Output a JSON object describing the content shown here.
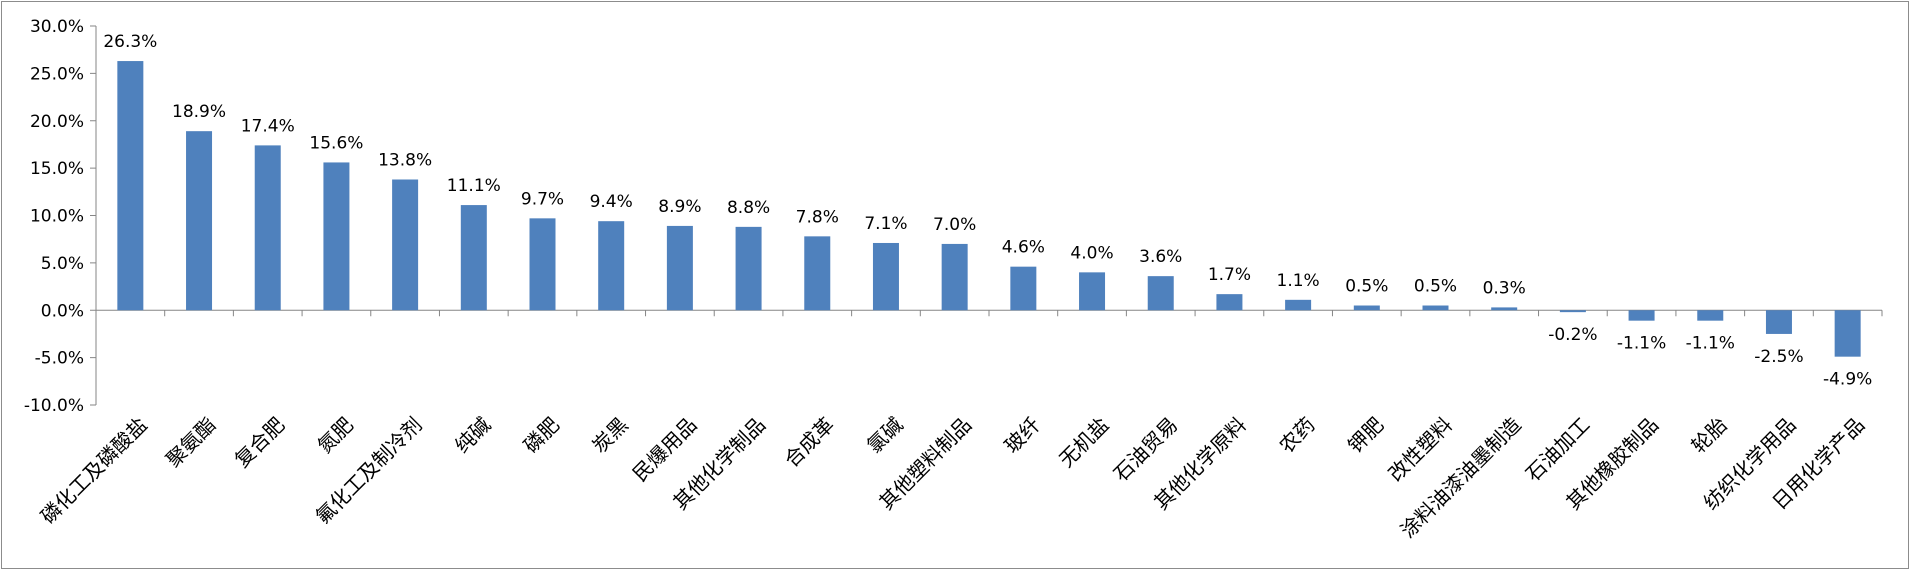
{
  "chart_data": {
    "type": "bar",
    "title": "",
    "xlabel": "",
    "ylabel": "",
    "ylim": [
      -10.0,
      30.0
    ],
    "yticks": [
      "30.0%",
      "25.0%",
      "20.0%",
      "15.0%",
      "10.0%",
      "5.0%",
      "0.0%",
      "-5.0%",
      "-10.0%"
    ],
    "ytick_values": [
      30,
      25,
      20,
      15,
      10,
      5,
      0,
      -5,
      -10
    ],
    "grid": false,
    "legend": "none",
    "bar_color": "#4f81bd",
    "categories": [
      "磷化工及磷酸盐",
      "聚氨酯",
      "复合肥",
      "氮肥",
      "氟化工及制冷剂",
      "纯碱",
      "磷肥",
      "炭黑",
      "民爆用品",
      "其他化学制品",
      "合成革",
      "氯碱",
      "其他塑料制品",
      "玻纤",
      "无机盐",
      "石油贸易",
      "其他化学原料",
      "农药",
      "钾肥",
      "改性塑料",
      "涂料油漆油墨制造",
      "石油加工",
      "其他橡胶制品",
      "轮胎",
      "纺织化学用品",
      "日用化学产品"
    ],
    "values": [
      26.3,
      18.9,
      17.4,
      15.6,
      13.8,
      11.1,
      9.7,
      9.4,
      8.9,
      8.8,
      7.8,
      7.1,
      7.0,
      4.6,
      4.0,
      3.6,
      1.7,
      1.1,
      0.5,
      0.5,
      0.3,
      -0.2,
      -1.1,
      -1.1,
      -2.5,
      -4.9
    ],
    "value_labels": [
      "26.3%",
      "18.9%",
      "17.4%",
      "15.6%",
      "13.8%",
      "11.1%",
      "9.7%",
      "9.4%",
      "8.9%",
      "8.8%",
      "7.8%",
      "7.1%",
      "7.0%",
      "4.6%",
      "4.0%",
      "3.6%",
      "1.7%",
      "1.1%",
      "0.5%",
      "0.5%",
      "0.3%",
      "-0.2%",
      "-1.1%",
      "-1.1%",
      "-2.5%",
      "-4.9%"
    ]
  }
}
